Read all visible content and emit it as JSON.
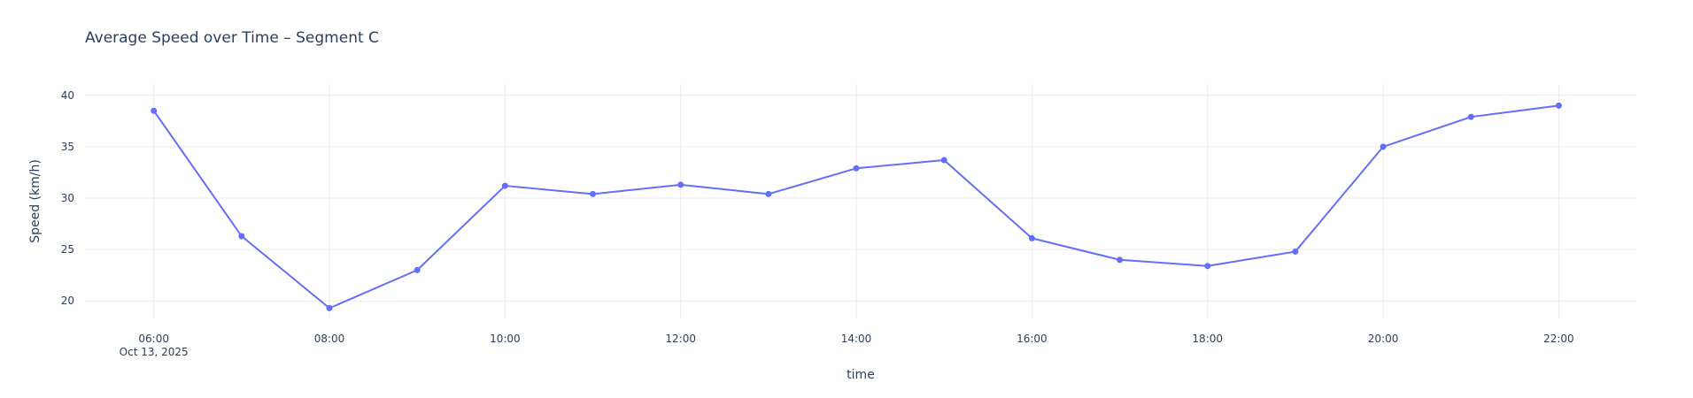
{
  "chart_data": {
    "type": "line",
    "title": "Average Speed over Time – Segment C",
    "xlabel": "time",
    "ylabel": "Speed (km/h)",
    "x_date_label": "Oct 13, 2025",
    "x": [
      "06:00",
      "07:00",
      "08:00",
      "09:00",
      "10:00",
      "11:00",
      "12:00",
      "13:00",
      "14:00",
      "15:00",
      "16:00",
      "17:00",
      "18:00",
      "19:00",
      "20:00",
      "21:00",
      "22:00"
    ],
    "x_tick_labels": [
      "06:00",
      "08:00",
      "10:00",
      "12:00",
      "14:00",
      "16:00",
      "18:00",
      "20:00",
      "22:00"
    ],
    "series": [
      {
        "values": [
          38.5,
          26.3,
          19.3,
          23.0,
          31.2,
          30.4,
          31.3,
          30.4,
          32.9,
          33.7,
          26.1,
          24.0,
          23.4,
          24.8,
          35.0,
          37.9,
          39.0
        ]
      }
    ],
    "y_ticks": [
      20,
      25,
      30,
      35,
      40
    ],
    "xlim": [
      "05:13",
      "22:53"
    ],
    "ylim": [
      18.3,
      41.1
    ],
    "grid": true,
    "color": "#636efa"
  }
}
